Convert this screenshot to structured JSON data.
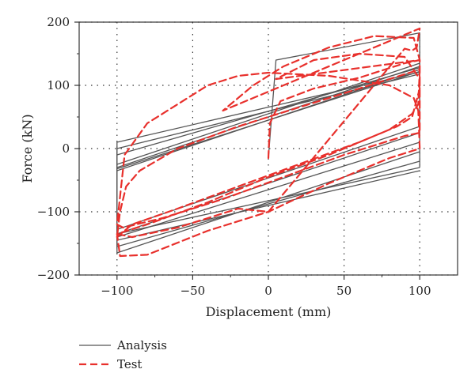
{
  "chart_data": {
    "type": "line",
    "xlabel": "Displacement (mm)",
    "ylabel": "Force (kN)",
    "xlim": [
      -125,
      125
    ],
    "ylim": [
      -200,
      200
    ],
    "xticks": [
      -100,
      -50,
      0,
      50,
      100
    ],
    "yticks": [
      -200,
      -100,
      0,
      100,
      200
    ],
    "xtick_labels": [
      "−100",
      "−50",
      "0",
      "50",
      "100"
    ],
    "ytick_labels": [
      "−200",
      "−100",
      "0",
      "100",
      "200"
    ],
    "grid": "dotted",
    "legend_position": "bottom-left, below plot",
    "series": [
      {
        "name": "Analysis",
        "color": "#555555",
        "style": "solid",
        "loops": [
          {
            "up": [
              [
                0,
                -15
              ],
              [
                5,
                140
              ],
              [
                100,
                183
              ],
              [
                100,
                -30
              ]
            ],
            "down": [
              [
                100,
                -30
              ],
              [
                -100,
                -135
              ],
              [
                -100,
                10
              ],
              [
                100,
                121
              ]
            ]
          },
          {
            "down": [
              [
                100,
                -35
              ],
              [
                -100,
                -145
              ],
              [
                -100,
                0
              ],
              [
                100,
                118
              ]
            ]
          },
          {
            "down": [
              [
                100,
                -20
              ],
              [
                -100,
                -155
              ],
              [
                -100,
                -10
              ],
              [
                100,
                128
              ]
            ]
          },
          {
            "down": [
              [
                100,
                -5
              ],
              [
                -100,
                -165
              ],
              [
                -100,
                -25
              ],
              [
                100,
                135
              ]
            ]
          },
          {
            "down": [
              [
                100,
                10
              ],
              [
                -100,
                -140
              ],
              [
                -100,
                -30
              ],
              [
                100,
                130
              ]
            ]
          },
          {
            "down": [
              [
                100,
                25
              ],
              [
                -100,
                -135
              ],
              [
                -100,
                -35
              ],
              [
                100,
                125
              ]
            ]
          },
          {
            "down": [
              [
                100,
                35
              ],
              [
                -100,
                -128
              ],
              [
                -100,
                -32
              ],
              [
                100,
                122
              ]
            ]
          }
        ]
      },
      {
        "name": "Test",
        "color": "#e8302c",
        "style": "dashed",
        "points": [
          [
            0,
            -15
          ],
          [
            1,
            40
          ],
          [
            8,
            75
          ],
          [
            30,
            95
          ],
          [
            60,
            112
          ],
          [
            90,
            135
          ],
          [
            100,
            140
          ],
          [
            100,
            95
          ],
          [
            95,
            50
          ],
          [
            85,
            35
          ],
          [
            60,
            10
          ],
          [
            20,
            -25
          ],
          [
            -20,
            -60
          ],
          [
            -60,
            -95
          ],
          [
            -90,
            -120
          ],
          [
            -100,
            -140
          ],
          [
            -98,
            -100
          ],
          [
            -94,
            -60
          ],
          [
            -85,
            -35
          ],
          [
            -60,
            0
          ],
          [
            -20,
            35
          ],
          [
            20,
            65
          ],
          [
            60,
            95
          ],
          [
            100,
            125
          ],
          [
            99,
            70
          ],
          [
            95,
            55
          ],
          [
            80,
            30
          ],
          [
            40,
            -10
          ],
          [
            0,
            -45
          ],
          [
            -40,
            -85
          ],
          [
            -80,
            -120
          ],
          [
            -100,
            -135
          ],
          [
            -98,
            -170
          ],
          [
            -80,
            -168
          ],
          [
            -40,
            -130
          ],
          [
            0,
            -100
          ],
          [
            40,
            -55
          ],
          [
            80,
            -15
          ],
          [
            100,
            0
          ],
          [
            99,
            60
          ],
          [
            96,
            80
          ],
          [
            80,
            100
          ],
          [
            40,
            115
          ],
          [
            0,
            120
          ],
          [
            -20,
            115
          ],
          [
            -40,
            100
          ],
          [
            -60,
            70
          ],
          [
            -80,
            40
          ],
          [
            -95,
            -10
          ],
          [
            -100,
            -120
          ],
          [
            -96,
            -125
          ],
          [
            -70,
            -110
          ],
          [
            -30,
            -80
          ],
          [
            10,
            -45
          ],
          [
            50,
            -10
          ],
          [
            90,
            20
          ],
          [
            100,
            25
          ],
          [
            100,
            110
          ],
          [
            90,
            145
          ],
          [
            60,
            150
          ],
          [
            30,
            140
          ],
          [
            5,
            110
          ],
          [
            100,
            140
          ],
          [
            96,
            175
          ],
          [
            70,
            178
          ],
          [
            40,
            160
          ],
          [
            10,
            130
          ],
          [
            -10,
            100
          ],
          [
            -30,
            60
          ],
          [
            100,
            190
          ],
          [
            98,
            160
          ],
          [
            95,
            155
          ],
          [
            90,
            158
          ],
          [
            0,
            -100
          ],
          [
            -20,
            -95
          ],
          [
            -60,
            -125
          ],
          [
            -90,
            -140
          ],
          [
            -100,
            -135
          ]
        ]
      }
    ]
  }
}
